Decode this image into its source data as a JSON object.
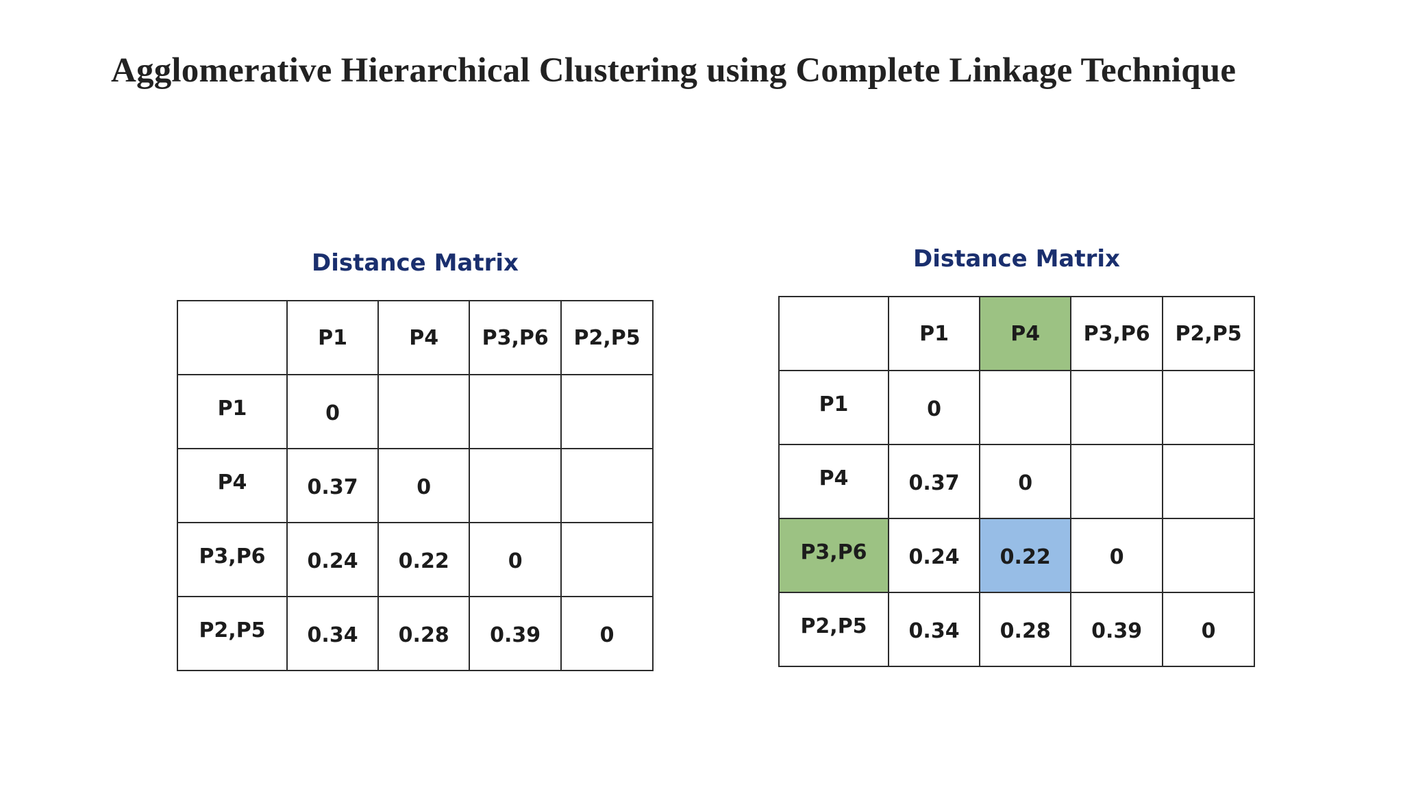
{
  "title": "Agglomerative Hierarchical Clustering using Complete Linkage Technique",
  "matrices": [
    {
      "heading": "Distance Matrix",
      "corner": "",
      "columns": [
        "P1",
        "P4",
        "P3,P6",
        "P2,P5"
      ],
      "rows": [
        {
          "label": "P1",
          "cells": [
            "0",
            "",
            "",
            ""
          ]
        },
        {
          "label": "P4",
          "cells": [
            "0.37",
            "0",
            "",
            ""
          ]
        },
        {
          "label": "P3,P6",
          "cells": [
            "0.24",
            "0.22",
            "0",
            ""
          ]
        },
        {
          "label": "P2,P5",
          "cells": [
            "0.34",
            "0.28",
            "0.39",
            "0"
          ]
        }
      ]
    },
    {
      "heading": "Distance Matrix",
      "corner": "",
      "columns": [
        "P1",
        "P4",
        "P3,P6",
        "P2,P5"
      ],
      "rows": [
        {
          "label": "P1",
          "cells": [
            "0",
            "",
            "",
            ""
          ]
        },
        {
          "label": "P4",
          "cells": [
            "0.37",
            "0",
            "",
            ""
          ]
        },
        {
          "label": "P3,P6",
          "cells": [
            "0.24",
            "0.22",
            "0",
            ""
          ]
        },
        {
          "label": "P2,P5",
          "cells": [
            "0.34",
            "0.28",
            "0.39",
            "0"
          ]
        }
      ],
      "highlights": {
        "column_header": "P4",
        "row_header": "P3,P6",
        "cell": {
          "row": "P3,P6",
          "column": "P4",
          "value": "0.22"
        },
        "header_color": "#9cc283",
        "cell_color": "#97bde6"
      }
    }
  ]
}
